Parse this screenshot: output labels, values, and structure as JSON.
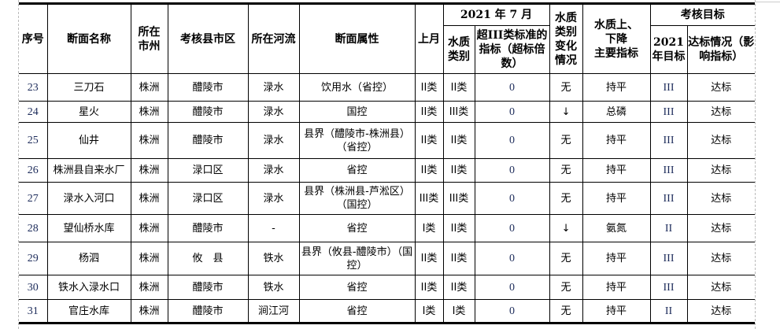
{
  "header": {
    "seq": "序号",
    "section_name": "断面名称",
    "city": "所在\n市州",
    "county": "考核县市区",
    "river": "所在河流",
    "attribute": "断面属性",
    "last_month": "上月",
    "period": "2021 年 7 月",
    "water_class": "水质\n类别",
    "exceed": "超III类标准的指标（超标倍数）",
    "class_change": "水质类别变化情况",
    "main_index": "水质上、\n下降\n主要指标",
    "target_group": "考核目标",
    "target_2021": "2021\n年目标",
    "compliance": "达标情况（影响指标）"
  },
  "rows": [
    {
      "seq": "23",
      "name": "三刀石",
      "city": "株洲",
      "county": "醴陵市",
      "river": "渌水",
      "attr": "饮用水（省控）",
      "last": "II类",
      "cls": "II类",
      "exceed": "0",
      "change": "无",
      "index": "持平",
      "target": "III",
      "status": "达标"
    },
    {
      "seq": "24",
      "name": "星火",
      "city": "株洲",
      "county": "醴陵市",
      "river": "渌水",
      "attr": "国控",
      "last": "II类",
      "cls": "III类",
      "exceed": "0",
      "change": "↓",
      "index": "总磷",
      "target": "III",
      "status": "达标"
    },
    {
      "seq": "25",
      "name": "仙井",
      "city": "株洲",
      "county": "醴陵市",
      "river": "渌水",
      "attr": "县界（醴陵市-株洲县）（省控）",
      "last": "II类",
      "cls": "II类",
      "exceed": "0",
      "change": "无",
      "index": "持平",
      "target": "III",
      "status": "达标"
    },
    {
      "seq": "26",
      "name": "株洲县自来水厂",
      "city": "株洲",
      "county": "渌口区",
      "river": "渌水",
      "attr": "省控",
      "last": "II类",
      "cls": "II类",
      "exceed": "0",
      "change": "无",
      "index": "持平",
      "target": "III",
      "status": "达标"
    },
    {
      "seq": "27",
      "name": "渌水入河口",
      "city": "株洲",
      "county": "渌口区",
      "river": "渌水",
      "attr": "县界（株洲县-芦淞区）（国控）",
      "last": "III类",
      "cls": "III类",
      "exceed": "0",
      "change": "无",
      "index": "持平",
      "target": "III",
      "status": "达标"
    },
    {
      "seq": "28",
      "name": "望仙桥水库",
      "city": "株洲",
      "county": "醴陵市",
      "river": "-",
      "attr": "省控",
      "last": "I类",
      "cls": "II类",
      "exceed": "0",
      "change": "↓",
      "index": "氨氮",
      "target": "II",
      "status": "达标"
    },
    {
      "seq": "29",
      "name": "杨泗",
      "city": "株洲",
      "county": "攸　县",
      "river": "铁水",
      "attr": "县界（攸县-醴陵市）（国控）",
      "last": "II类",
      "cls": "II类",
      "exceed": "0",
      "change": "无",
      "index": "持平",
      "target": "III",
      "status": "达标"
    },
    {
      "seq": "30",
      "name": "铁水入渌水口",
      "city": "株洲",
      "county": "醴陵市",
      "river": "铁水",
      "attr": "省控",
      "last": "II类",
      "cls": "II类",
      "exceed": "0",
      "change": "无",
      "index": "持平",
      "target": "III",
      "status": "达标"
    },
    {
      "seq": "31",
      "name": "官庄水库",
      "city": "株洲",
      "county": "醴陵市",
      "river": "涧江河",
      "attr": "省控",
      "last": "I类",
      "cls": "I类",
      "exceed": "0",
      "change": "无",
      "index": "持平",
      "target": "II",
      "status": "达标"
    }
  ]
}
